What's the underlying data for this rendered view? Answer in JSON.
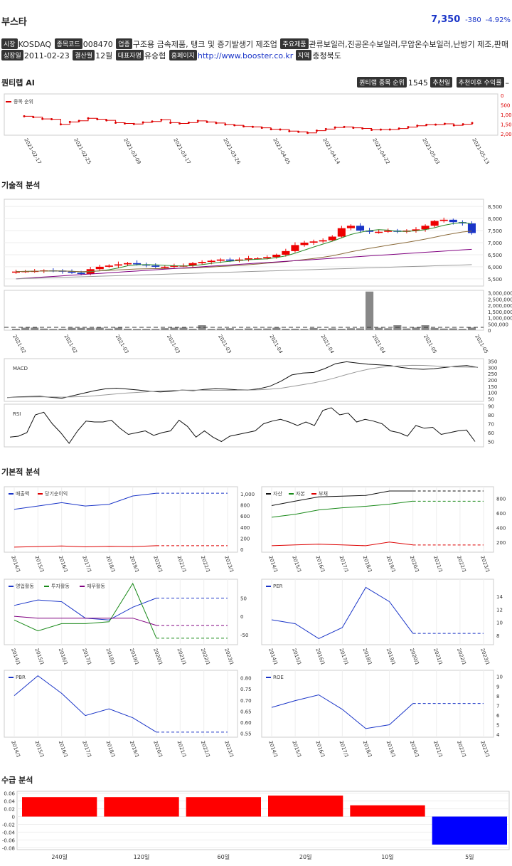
{
  "header": {
    "name": "부스타",
    "price": "7,350",
    "change": "-380",
    "change_pct": "-4.92%"
  },
  "info": {
    "market_tag": "시장",
    "market": "KOSDAQ",
    "code_tag": "종목코드",
    "code": "008470",
    "industry_tag": "업종",
    "industry": "구조용 금속제품, 탱크 및 증기발생기 제조업",
    "product_tag": "주요제품",
    "product": "관류보일러,진공온수보일러,무압온수보일러,난방기 제조,판매",
    "listed_tag": "상장일",
    "listed": "2011-02-23",
    "fiscal_tag": "결산월",
    "fiscal": "12월",
    "ceo_tag": "대표자명",
    "ceo": "유승협",
    "homepage_tag": "홈페이지",
    "homepage": "http://www.booster.co.kr",
    "region_tag": "지역",
    "region": "충청북도"
  },
  "quantlab": {
    "title": "퀀티랩 AI",
    "rank_tag": "퀀티랩 종목 순위",
    "rank": "1545",
    "rec_tag": "추천일",
    "ret_tag": "추천이후 수익률",
    "ret": "–",
    "chart": {
      "legend": "종목 순위",
      "y_ticks": [
        "0",
        "500",
        "1,000",
        "1,500",
        "2,000"
      ],
      "x_ticks": [
        "2021-02-17",
        "2021-02-25",
        "2021-03-09",
        "2021-03-17",
        "2021-03-26",
        "2021-04-05",
        "2021-04-14",
        "2021-04-22",
        "2021-05-03",
        "2021-05-13"
      ]
    }
  },
  "tech": {
    "title": "기술적 분석",
    "price_ticks": [
      "8,500",
      "8,000",
      "7,500",
      "7,000",
      "6,500",
      "6,000",
      "5,500"
    ],
    "vol_ticks": [
      "3,000,000",
      "2,500,000",
      "2,000,000",
      "1,500,000",
      "1,000,000",
      "500,000",
      "0"
    ],
    "x_ticks": [
      "2021-02-17",
      "2021-02-25",
      "2021-03-09",
      "2021-03-17",
      "2021-03-26",
      "2021-04-05",
      "2021-04-14",
      "2021-04-22",
      "2021-05-03",
      "2021-05-13"
    ],
    "macd_label": "MACD",
    "macd_ticks": [
      "350",
      "300",
      "250",
      "200",
      "150",
      "100",
      "50"
    ],
    "rsi_label": "RSI",
    "rsi_ticks": [
      "90",
      "80",
      "70",
      "60",
      "50"
    ]
  },
  "fund": {
    "title": "기본적 분석",
    "years": [
      "2014/12",
      "2015/12",
      "2016/12",
      "2017/12",
      "2018/12",
      "2019/12",
      "2020/12",
      "2021/12",
      "2022/12",
      "2023/12"
    ],
    "c1": {
      "legend": [
        "매출액",
        "당기순이익"
      ],
      "ticks": [
        "1,000",
        "800",
        "600",
        "400",
        "200",
        "0"
      ]
    },
    "c2": {
      "legend": [
        "자산",
        "자본",
        "부채"
      ],
      "ticks": [
        "800",
        "600",
        "400",
        "200"
      ]
    },
    "c3": {
      "legend": [
        "영업활동",
        "투자활동",
        "재무활동"
      ],
      "ticks": [
        "50",
        "0",
        "-50"
      ]
    },
    "c4": {
      "legend": [
        "PER"
      ],
      "ticks": [
        "14",
        "12",
        "10",
        "8"
      ]
    },
    "c5": {
      "legend": [
        "PBR"
      ],
      "ticks": [
        "0.80",
        "0.75",
        "0.70",
        "0.65",
        "0.60",
        "0.55"
      ]
    },
    "c6": {
      "legend": [
        "ROE"
      ],
      "ticks": [
        "10",
        "9",
        "8",
        "7",
        "6",
        "5",
        "4"
      ]
    }
  },
  "flow": {
    "title": "수급 분석",
    "y_ticks": [
      "0.06",
      "0.04",
      "0.02",
      "0",
      "-0.02",
      "-0.04",
      "-0.06",
      "-0.08"
    ]
  },
  "chart_data": {
    "type": "bar",
    "categories": [
      "240일",
      "120일",
      "60일",
      "20일",
      "10일",
      "5일"
    ],
    "values": [
      0.05,
      0.05,
      0.05,
      0.054,
      0.029,
      -0.072
    ],
    "ylim": [
      -0.085,
      0.065
    ],
    "colors": {
      "up": "#ff0000",
      "down": "#0000ff"
    }
  }
}
